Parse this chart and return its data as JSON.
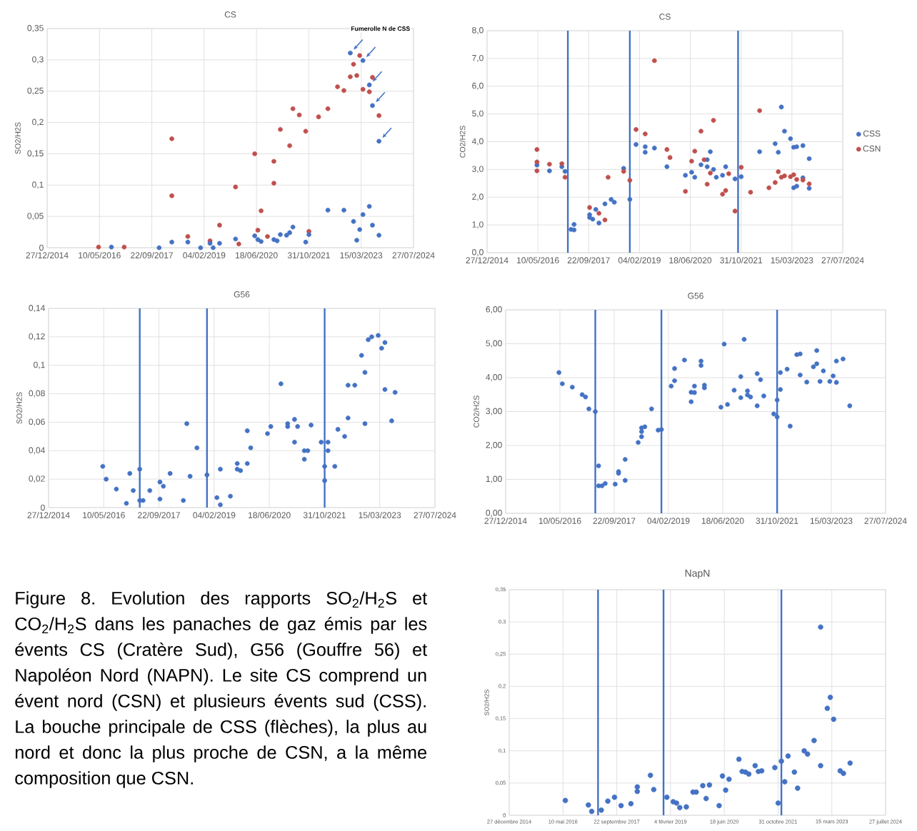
{
  "chart_data": [
    {
      "type": "scatter",
      "title": "CS",
      "ylabel": "SO2/H2S",
      "marker": "circle",
      "grid": true,
      "xlim": [
        "2014-12-27",
        "2024-07-27"
      ],
      "xticks": [
        {
          "value": "2014-12-27",
          "label": "27/12/2014"
        },
        {
          "value": "2016-05-10",
          "label": "10/05/2016"
        },
        {
          "value": "2017-09-22",
          "label": "22/09/2017"
        },
        {
          "value": "2019-02-04",
          "label": "04/02/2019"
        },
        {
          "value": "2020-06-18",
          "label": "18/06/2020"
        },
        {
          "value": "2021-10-31",
          "label": "31/10/2021"
        },
        {
          "value": "2023-03-15",
          "label": "15/03/2023"
        },
        {
          "value": "2024-07-27",
          "label": "27/07/2024"
        }
      ],
      "ylim": [
        0,
        0.35
      ],
      "yticks": [
        0,
        {
          "value": 0.05,
          "label": "0,05"
        },
        {
          "value": 0.1,
          "label": "0,1"
        },
        {
          "value": 0.15,
          "label": "0,15"
        },
        {
          "value": 0.2,
          "label": "0,2"
        },
        {
          "value": 0.25,
          "label": "0,25"
        },
        {
          "value": 0.3,
          "label": "0,3"
        },
        {
          "value": 0.35,
          "label": "0,35"
        }
      ],
      "annotations": [
        "Fumerolle N de CSS"
      ],
      "series": [
        {
          "color": "#c0504d",
          "x": [
            "2016-05",
            "2017-01",
            "2018-04",
            "2018-04",
            "2018-09",
            "2019-04",
            "2019-07",
            "2019-12",
            "2020-01",
            "2020-06",
            "2020-07",
            "2020-08",
            "2020-10",
            "2020-12",
            "2020-12",
            "2021-02",
            "2021-05",
            "2021-06",
            "2021-08",
            "2021-10",
            "2021-11",
            "2022-02",
            "2022-05",
            "2022-08",
            "2022-10",
            "2022-12",
            "2023-01",
            "2023-02",
            "2023-03",
            "2023-04",
            "2023-06",
            "2023-07",
            "2023-09"
          ],
          "values": [
            0.001,
            0.001,
            0.174,
            0.083,
            0.018,
            0.011,
            0.036,
            0.097,
            0.006,
            0.15,
            0.028,
            0.059,
            0.018,
            0.138,
            0.103,
            0.189,
            0.163,
            0.222,
            0.212,
            0.186,
            0.026,
            0.209,
            0.222,
            0.257,
            0.251,
            0.273,
            0.293,
            0.275,
            0.307,
            0.253,
            0.249,
            0.272,
            0.211
          ]
        },
        {
          "color": "#4472c4",
          "x": [
            "2016-09",
            "2017-12",
            "2018-04",
            "2018-09",
            "2019-01",
            "2019-04",
            "2019-05",
            "2019-07",
            "2019-12",
            "2020-06",
            "2020-07",
            "2020-08",
            "2020-12",
            "2021-01",
            "2021-02",
            "2021-04",
            "2021-05",
            "2021-06",
            "2021-10",
            "2021-11",
            "2022-05",
            "2022-10",
            "2022-12",
            "2023-01",
            "2023-02",
            "2023-03",
            "2023-04",
            "2023-04",
            "2023-06",
            "2023-06",
            "2023-07",
            "2023-07",
            "2023-09",
            "2023-09"
          ],
          "values": [
            0.001,
            0,
            0.009,
            0.009,
            0,
            0.007,
            0,
            0.007,
            0.014,
            0.019,
            0.013,
            0.01,
            0.013,
            0.011,
            0.021,
            0.02,
            0.024,
            0.033,
            0.009,
            0.021,
            0.06,
            0.06,
            0.311,
            0.042,
            0.012,
            0.029,
            0.299,
            0.053,
            0.26,
            0.066,
            0.227,
            0.036,
            0.17,
            0.02
          ]
        }
      ]
    },
    {
      "type": "scatter",
      "title": "CS",
      "ylabel": "CO2/H2S",
      "marker": "circle",
      "grid": true,
      "legend": "right",
      "xlim": [
        "2014-12-27",
        "2024-07-27"
      ],
      "xticks": [
        {
          "value": "2014-12-27",
          "label": "27/12/2014"
        },
        {
          "value": "2016-05-10",
          "label": "10/05/2016"
        },
        {
          "value": "2017-09-22",
          "label": "22/09/2017"
        },
        {
          "value": "2019-02-04",
          "label": "04/02/2019"
        },
        {
          "value": "2020-06-18",
          "label": "18/06/2020"
        },
        {
          "value": "2021-10-31",
          "label": "31/10/2021"
        },
        {
          "value": "2023-03-15",
          "label": "15/03/2023"
        },
        {
          "value": "2024-07-27",
          "label": "27/07/2024"
        }
      ],
      "ylim": [
        0,
        8
      ],
      "yticks": [
        {
          "value": 0,
          "label": "0,0"
        },
        {
          "value": 1,
          "label": "1,0"
        },
        {
          "value": 2,
          "label": "2,0"
        },
        {
          "value": 3,
          "label": "3,0"
        },
        {
          "value": 4,
          "label": "4,0"
        },
        {
          "value": 5,
          "label": "5,0"
        },
        {
          "value": 6,
          "label": "6,0"
        },
        {
          "value": 7,
          "label": "7,0"
        },
        {
          "value": 8,
          "label": "8,0"
        }
      ],
      "ref_lines": [
        {
          "axis": "x",
          "value": "2017-03",
          "color": "#4472c4"
        },
        {
          "axis": "x",
          "value": "2018-11",
          "color": "#4472c4"
        },
        {
          "axis": "x",
          "value": "2021-10",
          "color": "#4472c4"
        }
      ],
      "series": [
        {
          "name": "CSS",
          "color": "#4472c4",
          "x": [
            "2016-05",
            "2016-09",
            "2017-01",
            "2017-02",
            "2017-04",
            "2017-05",
            "2017-05",
            "2017-10",
            "2017-10",
            "2017-11",
            "2017-12",
            "2018-01",
            "2018-03",
            "2018-05",
            "2018-06",
            "2018-09",
            "2018-11",
            "2019-01",
            "2019-04",
            "2019-04",
            "2019-07",
            "2019-11",
            "2020-05",
            "2020-07",
            "2020-08",
            "2020-10",
            "2020-12",
            "2020-12",
            "2021-01",
            "2021-02",
            "2021-03",
            "2021-05",
            "2021-06",
            "2021-09",
            "2021-11",
            "2022-05",
            "2022-10",
            "2022-11",
            "2022-12",
            "2023-01",
            "2023-03",
            "2023-04",
            "2023-04",
            "2023-05",
            "2023-05",
            "2023-07",
            "2023-07",
            "2023-09",
            "2023-09"
          ],
          "values": [
            3.16,
            2.95,
            3.1,
            2.93,
            0.84,
            0.82,
            1.02,
            1.37,
            1.27,
            1.21,
            1.56,
            1.07,
            1.76,
            1.92,
            1.82,
            3.04,
            1.92,
            3.9,
            3.62,
            3.82,
            3.77,
            3.1,
            2.79,
            2.9,
            2.72,
            3.17,
            3.1,
            3.35,
            3.64,
            3.0,
            2.72,
            2.79,
            3.1,
            2.66,
            2.74,
            3.64,
            3.93,
            3.62,
            5.25,
            4.38,
            4.11,
            3.8,
            2.34,
            3.82,
            2.4,
            3.86,
            2.7,
            3.39,
            2.32
          ]
        },
        {
          "name": "CSN",
          "color": "#c0504d",
          "x": [
            "2016-05",
            "2016-05",
            "2016-05",
            "2016-09",
            "2017-01",
            "2017-02",
            "2017-10",
            "2018-01",
            "2018-03",
            "2018-04",
            "2018-09",
            "2018-11",
            "2019-01",
            "2019-04",
            "2019-07",
            "2019-11",
            "2019-12",
            "2020-05",
            "2020-07",
            "2020-08",
            "2020-10",
            "2020-11",
            "2020-12",
            "2021-01",
            "2021-02",
            "2021-05",
            "2021-06",
            "2021-07",
            "2021-09",
            "2021-11",
            "2022-02",
            "2022-05",
            "2022-08",
            "2022-10",
            "2022-11",
            "2022-12",
            "2023-01",
            "2023-03",
            "2023-04",
            "2023-05",
            "2023-07",
            "2023-09"
          ],
          "values": [
            3.72,
            3.27,
            2.95,
            3.19,
            3.21,
            2.72,
            1.63,
            1.42,
            1.18,
            2.72,
            2.93,
            2.61,
            4.44,
            4.28,
            6.92,
            3.72,
            3.43,
            2.21,
            3.3,
            3.66,
            4.38,
            3.35,
            2.47,
            2.87,
            4.77,
            2.11,
            2.24,
            2.85,
            1.5,
            3.08,
            2.18,
            5.12,
            2.34,
            2.53,
            2.92,
            2.72,
            2.77,
            2.74,
            2.81,
            2.64,
            2.62,
            2.48
          ]
        }
      ]
    },
    {
      "type": "scatter",
      "title": "G56",
      "ylabel": "SO2/H2S",
      "marker": "circle",
      "grid": true,
      "xlim": [
        "2014-12-27",
        "2024-07-27"
      ],
      "xticks": [
        {
          "value": "2014-12-27",
          "label": "27/12/2014"
        },
        {
          "value": "2016-05-10",
          "label": "10/05/2016"
        },
        {
          "value": "2017-09-22",
          "label": "22/09/2017"
        },
        {
          "value": "2019-02-04",
          "label": "04/02/2019"
        },
        {
          "value": "2020-06-18",
          "label": "18/06/2020"
        },
        {
          "value": "2021-10-31",
          "label": "31/10/2021"
        },
        {
          "value": "2023-03-15",
          "label": "15/03/2023"
        },
        {
          "value": "2024-07-27",
          "label": "27/07/2024"
        }
      ],
      "ylim": [
        0,
        0.14
      ],
      "yticks": [
        0,
        {
          "value": 0.02,
          "label": "0,02"
        },
        {
          "value": 0.04,
          "label": "0,04"
        },
        {
          "value": 0.06,
          "label": "0,06"
        },
        {
          "value": 0.08,
          "label": "0,08"
        },
        {
          "value": 0.1,
          "label": "0,1"
        },
        {
          "value": 0.12,
          "label": "0,12"
        },
        {
          "value": 0.14,
          "label": "0,14"
        }
      ],
      "ref_lines": [
        {
          "axis": "x",
          "value": "2017-04",
          "color": "#4472c4"
        },
        {
          "axis": "x",
          "value": "2018-12",
          "color": "#4472c4"
        },
        {
          "axis": "x",
          "value": "2021-11",
          "color": "#4472c4"
        }
      ],
      "series": [
        {
          "color": "#4472c4",
          "x": [
            "2016-05",
            "2016-06",
            "2016-09",
            "2016-12",
            "2017-01",
            "2017-02",
            "2017-04",
            "2017-04",
            "2017-05",
            "2017-07",
            "2017-10",
            "2017-10",
            "2017-11",
            "2018-01",
            "2018-05",
            "2018-06",
            "2018-07",
            "2018-09",
            "2018-12",
            "2019-03",
            "2019-04",
            "2019-04",
            "2019-07",
            "2019-09",
            "2019-09",
            "2019-10",
            "2019-12",
            "2019-12",
            "2020-01",
            "2020-06",
            "2020-07",
            "2020-10",
            "2020-12",
            "2020-12",
            "2021-02",
            "2021-02",
            "2021-03",
            "2021-05",
            "2021-05",
            "2021-06",
            "2021-07",
            "2021-10",
            "2021-11",
            "2021-11",
            "2021-12",
            "2021-12",
            "2022-02",
            "2022-03",
            "2022-05",
            "2022-06",
            "2022-06",
            "2022-08",
            "2022-10",
            "2022-11",
            "2022-11",
            "2022-12",
            "2023-01",
            "2023-03",
            "2023-04",
            "2023-05",
            "2023-05",
            "2023-07",
            "2023-08"
          ],
          "values": [
            0.029,
            0.02,
            0.013,
            0.003,
            0.024,
            0.012,
            0.027,
            0.005,
            0.005,
            0.012,
            0.006,
            0.018,
            0.015,
            0.024,
            0.005,
            0.059,
            0.022,
            0.042,
            0.023,
            0.007,
            0.027,
            0.002,
            0.008,
            0.031,
            0.027,
            0.026,
            0.054,
            0.031,
            0.042,
            0.052,
            0.057,
            0.087,
            0.057,
            0.059,
            0.062,
            0.046,
            0.057,
            0.04,
            0.034,
            0.04,
            0.058,
            0.046,
            0.029,
            0.019,
            0.04,
            0.046,
            0.029,
            0.055,
            0.05,
            0.086,
            0.063,
            0.086,
            0.107,
            0.095,
            0.059,
            0.118,
            0.12,
            0.121,
            0.112,
            0.116,
            0.083,
            0.061,
            0.081
          ]
        }
      ]
    },
    {
      "type": "scatter",
      "title": "G56",
      "ylabel": "CO2/H2S",
      "marker": "circle",
      "grid": true,
      "xlim": [
        "2014-12-27",
        "2024-07-27"
      ],
      "xticks": [
        {
          "value": "2014-12-27",
          "label": "27/12/2014"
        },
        {
          "value": "2016-05-10",
          "label": "10/05/2016"
        },
        {
          "value": "2017-09-22",
          "label": "22/09/2017"
        },
        {
          "value": "2019-02-04",
          "label": "04/02/2019"
        },
        {
          "value": "2020-06-18",
          "label": "18/06/2020"
        },
        {
          "value": "2021-10-31",
          "label": "31/10/2021"
        },
        {
          "value": "2023-03-15",
          "label": "15/03/2023"
        },
        {
          "value": "2024-07-27",
          "label": "27/07/2024"
        }
      ],
      "ylim": [
        0,
        6
      ],
      "yticks": [
        {
          "value": 0,
          "label": "0,00"
        },
        {
          "value": 1,
          "label": "1,00"
        },
        {
          "value": 2,
          "label": "2,00"
        },
        {
          "value": 3,
          "label": "3,00"
        },
        {
          "value": 4,
          "label": "4,00"
        },
        {
          "value": 5,
          "label": "5,00"
        },
        {
          "value": 6,
          "label": "6,00"
        }
      ],
      "ref_lines": [
        {
          "axis": "x",
          "value": "2017-04",
          "color": "#4472c4"
        },
        {
          "axis": "x",
          "value": "2018-12",
          "color": "#4472c4"
        },
        {
          "axis": "x",
          "value": "2021-11",
          "color": "#4472c4"
        }
      ],
      "series": [
        {
          "color": "#4472c4",
          "x": [
            "2016-05",
            "2016-06",
            "2016-09",
            "2016-12",
            "2017-01",
            "2017-02",
            "2017-04",
            "2017-05",
            "2017-05",
            "2017-06",
            "2017-07",
            "2017-10",
            "2017-11",
            "2017-11",
            "2018-01",
            "2018-01",
            "2018-05",
            "2018-06",
            "2018-06",
            "2018-06",
            "2018-07",
            "2018-09",
            "2018-11",
            "2018-12",
            "2019-03",
            "2019-04",
            "2019-04",
            "2019-07",
            "2019-09",
            "2019-09",
            "2019-10",
            "2019-10",
            "2019-12",
            "2019-12",
            "2020-01",
            "2020-01",
            "2020-06",
            "2020-07",
            "2020-08",
            "2020-10",
            "2020-12",
            "2020-12",
            "2021-01",
            "2021-02",
            "2021-02",
            "2021-03",
            "2021-05",
            "2021-05",
            "2021-06",
            "2021-07",
            "2021-10",
            "2021-11",
            "2021-11",
            "2021-12",
            "2021-12",
            "2022-02",
            "2022-03",
            "2022-05",
            "2022-06",
            "2022-06",
            "2022-08",
            "2022-10",
            "2022-11",
            "2022-11",
            "2022-12",
            "2023-01",
            "2023-03",
            "2023-04",
            "2023-05",
            "2023-05",
            "2023-07",
            "2023-09"
          ],
          "values": [
            4.15,
            3.82,
            3.72,
            3.5,
            3.43,
            3.08,
            3.0,
            1.4,
            0.81,
            0.81,
            0.88,
            0.86,
            1.23,
            1.18,
            1.59,
            0.97,
            2.09,
            2.26,
            2.52,
            2.41,
            2.55,
            3.08,
            2.45,
            2.47,
            3.75,
            3.91,
            4.27,
            4.52,
            3.29,
            3.57,
            3.56,
            3.75,
            4.49,
            4.36,
            3.78,
            3.7,
            3.13,
            4.99,
            3.21,
            3.63,
            3.41,
            4.03,
            5.13,
            3.61,
            3.49,
            3.43,
            4.12,
            3.17,
            3.94,
            3.46,
            2.93,
            3.34,
            2.84,
            4.15,
            3.65,
            4.25,
            2.57,
            4.68,
            4.7,
            4.08,
            3.87,
            4.32,
            4.8,
            4.41,
            3.89,
            4.2,
            3.89,
            4.05,
            4.49,
            3.86,
            4.55,
            3.17
          ]
        }
      ]
    },
    {
      "type": "scatter",
      "title": "NapN",
      "ylabel": "SO2/H2S",
      "marker": "circle",
      "grid": true,
      "xlim": [
        "2014-12-27",
        "2024-07-27"
      ],
      "xticks": [
        {
          "value": "2014-12-27",
          "label": "27 décembre 2014"
        },
        {
          "value": "2016-05-10",
          "label": "10 mai 2016"
        },
        {
          "value": "2017-09-22",
          "label": "22 septembre 2017"
        },
        {
          "value": "2019-02-04",
          "label": "4 février 2019"
        },
        {
          "value": "2020-06-18",
          "label": "18 juin 2020"
        },
        {
          "value": "2021-10-31",
          "label": "31 octobre 2021"
        },
        {
          "value": "2023-03-15",
          "label": "15 mars 2023"
        },
        {
          "value": "2024-07-27",
          "label": "27 juillet 2024"
        }
      ],
      "ylim": [
        0,
        0.35
      ],
      "yticks": [
        0,
        {
          "value": 0.05,
          "label": "0,05"
        },
        {
          "value": 0.1,
          "label": "0,1"
        },
        {
          "value": 0.15,
          "label": "0,15"
        },
        {
          "value": 0.2,
          "label": "0,2"
        },
        {
          "value": 0.25,
          "label": "0,25"
        },
        {
          "value": 0.3,
          "label": "0,3"
        },
        {
          "value": 0.35,
          "label": "0,35"
        }
      ],
      "ref_lines": [
        {
          "axis": "x",
          "value": "2017-04",
          "color": "#4472c4"
        },
        {
          "axis": "x",
          "value": "2018-12",
          "color": "#4472c4"
        },
        {
          "axis": "x",
          "value": "2021-12",
          "color": "#4472c4"
        }
      ],
      "series": [
        {
          "color": "#4472c4",
          "x": [
            "2016-06",
            "2017-01",
            "2017-02",
            "2017-05",
            "2017-07",
            "2017-09",
            "2017-11",
            "2018-02",
            "2018-04",
            "2018-04",
            "2018-08",
            "2018-09",
            "2019-01",
            "2019-03",
            "2019-04",
            "2019-05",
            "2019-07",
            "2019-09",
            "2019-10",
            "2019-12",
            "2020-01",
            "2020-02",
            "2020-05",
            "2020-06",
            "2020-07",
            "2020-08",
            "2020-11",
            "2020-12",
            "2021-01",
            "2021-02",
            "2021-04",
            "2021-05",
            "2021-06",
            "2021-10",
            "2021-11",
            "2021-12",
            "2022-01",
            "2022-02",
            "2022-04",
            "2022-05",
            "2022-07",
            "2022-08",
            "2022-10",
            "2022-12",
            "2022-12",
            "2023-02",
            "2023-03",
            "2023-04",
            "2023-06",
            "2023-07",
            "2023-09"
          ],
          "values": [
            0.023,
            0.016,
            0.006,
            0.008,
            0.022,
            0.028,
            0.015,
            0.018,
            0.044,
            0.037,
            0.062,
            0.04,
            0.028,
            0.021,
            0.019,
            0.012,
            0.013,
            0.036,
            0.036,
            0.046,
            0.026,
            0.047,
            0.015,
            0.061,
            0.039,
            0.056,
            0.087,
            0.068,
            0.067,
            0.064,
            0.077,
            0.068,
            0.069,
            0.074,
            0.019,
            0.084,
            0.052,
            0.092,
            0.067,
            0.042,
            0.1,
            0.095,
            0.116,
            0.077,
            0.292,
            0.166,
            0.183,
            0.149,
            0.069,
            0.065,
            0.081
          ]
        }
      ]
    },
    {
      "type": "other",
      "annotations": [
        "Figure 8. Evolution des rapports SO$_{2}$/H$_{2}$S et CO$_{2}$/H$_{2}$S dans les panaches de gaz émis par les évents CS (Cratère Sud), G56 (Gouffre 56) et Napoléon Nord (NAPN). Le site CS comprend un évent nord (CSN) et plusieurs évents sud (CSS). La bouche principale de CSS (flèches), la plus au nord et donc la plus proche de CSN, a la même composition que CSN."
      ]
    }
  ]
}
